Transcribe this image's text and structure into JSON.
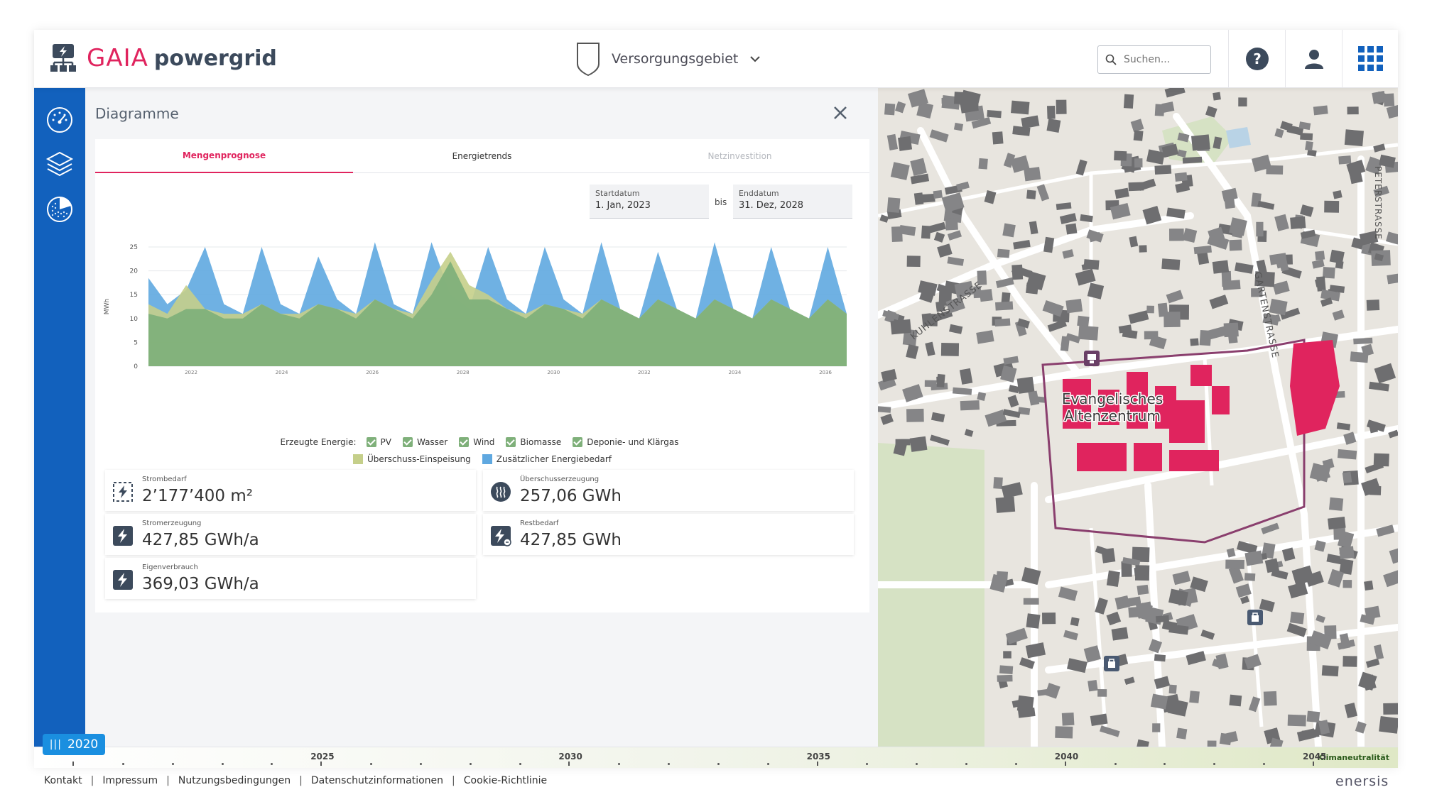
{
  "header": {
    "logo_gaia": "GAIA",
    "logo_powergrid": "powergrid",
    "area_label": "Versorgungsgebiet",
    "search_placeholder": "Suchen..."
  },
  "icons": {
    "logo": "power-network-icon",
    "area": "shield-icon",
    "help": "help-icon",
    "user": "user-icon",
    "apps": "apps-grid-icon",
    "sidebar": [
      "dashboard-gauge-icon",
      "layers-icon",
      "pie-chart-icon"
    ]
  },
  "colors": {
    "accent": "#e0245e",
    "sidebar": "#1261bd",
    "pv": "#7fb07a",
    "blue": "#5fa8e0",
    "olive": "#c5cf8a",
    "highlight": "#e0245e"
  },
  "panel": {
    "title": "Diagramme",
    "tabs": [
      {
        "label": "Mengenprognose",
        "state": "active"
      },
      {
        "label": "Energietrends",
        "state": "normal"
      },
      {
        "label": "Netzinvestition",
        "state": "disabled"
      }
    ],
    "start_label": "Startdatum",
    "start_value": "1. Jan, 2023",
    "bis": "bis",
    "end_label": "Enddatum",
    "end_value": "31. Dez, 2028"
  },
  "legend": {
    "title": "Erzeugte Energie:",
    "checked": [
      "PV",
      "Wasser",
      "Wind",
      "Biomasse",
      "Deponie- und Klärgas"
    ],
    "series": [
      "Überschuss-Einspeisung",
      "Zusätzlicher Energiebedarf"
    ]
  },
  "chart_data": {
    "type": "area",
    "ylabel": "MWh",
    "xlabel": "",
    "ylim": [
      0,
      25
    ],
    "yticks": [
      "0",
      "5",
      "10",
      "15",
      "20",
      "25"
    ],
    "xticks": [
      "2022",
      "2024",
      "2026",
      "2028",
      "2030",
      "2032",
      "2034",
      "2036"
    ],
    "grid": true,
    "series": [
      {
        "name": "Zusätzlicher Energiebedarf",
        "color": "#5fa8e0",
        "values": [
          18.5,
          13,
          16,
          25,
          13,
          11,
          25,
          13,
          11,
          23,
          14,
          11,
          26,
          13,
          11,
          26,
          15,
          12,
          25,
          14,
          11,
          25,
          14,
          11,
          26,
          12,
          10,
          24,
          12,
          10,
          26,
          12,
          10,
          25,
          12,
          10,
          25,
          11
        ]
      },
      {
        "name": "Überschuss-Einspeisung",
        "color": "#c5cf8a",
        "values": [
          13,
          11,
          17,
          12,
          11,
          11,
          13,
          11,
          11,
          13,
          12,
          11,
          14,
          12,
          11,
          18,
          24,
          17,
          15,
          12,
          11,
          13,
          12,
          11,
          14,
          12,
          10,
          14,
          12,
          10,
          14,
          12,
          10,
          14,
          12,
          10,
          14,
          11
        ]
      },
      {
        "name": "Erzeugte Energie",
        "color": "#7fb07a",
        "values": [
          11,
          10,
          12,
          12,
          10,
          10,
          13,
          11,
          10,
          13,
          12,
          10,
          14,
          12,
          10,
          15,
          22,
          14,
          14,
          12,
          10,
          13,
          12,
          10,
          14,
          12,
          10,
          14,
          12,
          10,
          14,
          12,
          10,
          14,
          12,
          10,
          14,
          11
        ]
      }
    ]
  },
  "kpis": [
    {
      "label": "Strombedarf",
      "value": "2’177’400 m²",
      "icon": "power-dashed-icon"
    },
    {
      "label": "Überschusserzeugung",
      "value": "257,06 GWh",
      "icon": "heat-waves-icon"
    },
    {
      "label": "Stromerzeugung",
      "value": "427,85 GWh/a",
      "icon": "lightning-icon"
    },
    {
      "label": "Restbedarf",
      "value": "427,85 GWh",
      "icon": "lightning-remainder-icon"
    },
    {
      "label": "Eigenverbrauch",
      "value": "369,03 GWh/a",
      "icon": "lightning-icon"
    }
  ],
  "map": {
    "streets": [
      "KUHLENSTRASSE",
      "GARTENSTRASSE",
      "PETERSTRASSE"
    ],
    "poi_label": "Evangelisches Altenzentrum"
  },
  "timeline": {
    "current_year": "2020",
    "years": [
      "2025",
      "2030",
      "2035",
      "2040",
      "2045"
    ],
    "end_label": "Klimaneutralität"
  },
  "footer": {
    "links": [
      "Kontakt",
      "Impressum",
      "Nutzungsbedingungen",
      "Datenschutzinformationen",
      "Cookie-Richtlinie"
    ],
    "brand": "enersis"
  }
}
